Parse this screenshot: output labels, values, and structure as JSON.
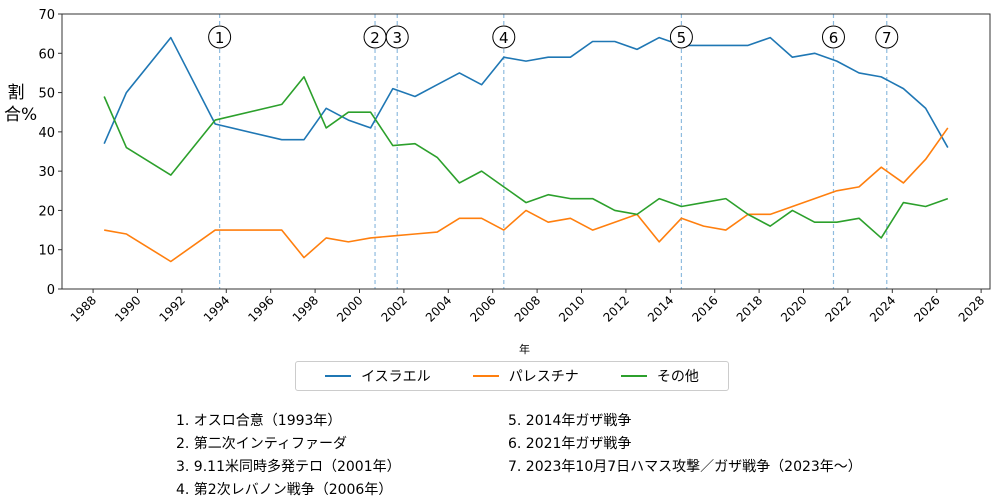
{
  "chart_data": {
    "type": "line",
    "xlabel": "年",
    "ylabel": "割合%",
    "xlim": [
      1986.6,
      2028.4
    ],
    "ylim": [
      0,
      70
    ],
    "xticks": [
      1988,
      1990,
      1992,
      1994,
      1996,
      1998,
      2000,
      2002,
      2004,
      2006,
      2008,
      2010,
      2012,
      2014,
      2016,
      2018,
      2020,
      2022,
      2024,
      2026,
      2028
    ],
    "yticks": [
      0,
      10,
      20,
      30,
      40,
      50,
      60,
      70
    ],
    "grid": false,
    "legend_position": "bottom",
    "x": [
      1988.5,
      1989.5,
      1991.5,
      1993.5,
      1996.5,
      1997.5,
      1998.5,
      1999.5,
      2000.5,
      2001.5,
      2002.5,
      2003.5,
      2004.5,
      2005.5,
      2006.5,
      2007.5,
      2008.5,
      2009.5,
      2010.5,
      2011.5,
      2012.5,
      2013.5,
      2014.5,
      2015.5,
      2016.5,
      2017.5,
      2018.5,
      2019.5,
      2020.5,
      2021.5,
      2022.5,
      2023.5,
      2024.5,
      2025.5,
      2026.5
    ],
    "series": [
      {
        "name": "イスラエル",
        "color": "#1f77b4",
        "values": [
          37,
          50,
          64,
          42,
          38,
          38,
          46,
          43,
          41,
          51,
          49,
          52,
          55,
          52,
          59,
          58,
          59,
          59,
          63,
          63,
          61,
          64,
          62,
          62,
          62,
          62,
          64,
          59,
          60,
          58,
          55,
          54,
          51,
          46,
          36
        ]
      },
      {
        "name": "パレスチナ",
        "color": "#ff7f0e",
        "values": [
          15,
          14,
          7,
          15,
          15,
          8,
          13,
          12,
          13,
          13.5,
          14,
          14.5,
          18,
          18,
          15,
          20,
          17,
          18,
          15,
          17,
          19,
          12,
          18,
          16,
          15,
          19,
          19,
          21,
          23,
          25,
          26,
          31,
          27,
          33,
          41
        ]
      },
      {
        "name": "その他",
        "color": "#2ca02c",
        "values": [
          49,
          36,
          29,
          43,
          47,
          54,
          41,
          45,
          45,
          36.5,
          37,
          33.5,
          27,
          30,
          26,
          22,
          24,
          23,
          23,
          20,
          19,
          23,
          21,
          22,
          23,
          19,
          16,
          20,
          17,
          17,
          18,
          13,
          22,
          21,
          23
        ]
      }
    ],
    "events": [
      {
        "marker": "①",
        "x": 1993.7
      },
      {
        "marker": "②",
        "x": 2000.7
      },
      {
        "marker": "③",
        "x": 2001.7
      },
      {
        "marker": "④",
        "x": 2006.5
      },
      {
        "marker": "⑤",
        "x": 2014.5
      },
      {
        "marker": "⑥",
        "x": 2021.35
      },
      {
        "marker": "⑦",
        "x": 2023.75
      }
    ],
    "event_line_color": "#8fbcdf"
  },
  "notes": {
    "left": [
      "1. オスロ合意（1993年）",
      "2. 第二次インティファーダ",
      "3. 9.11米同時多発テロ（2001年）",
      "4. 第2次レバノン戦争（2006年）"
    ],
    "right": [
      "5. 2014年ガザ戦争",
      "6. 2021年ガザ戦争",
      "7. 2023年10月7日ハマス攻撃／ガザ戦争（2023年〜）"
    ]
  }
}
